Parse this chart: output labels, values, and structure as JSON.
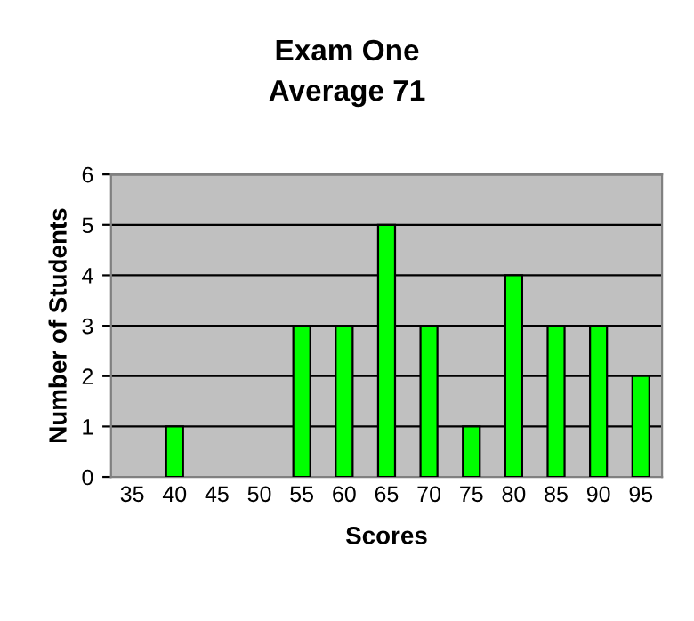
{
  "chart_data": {
    "type": "bar",
    "title": "Exam One",
    "subtitle": "Average 71",
    "xlabel": "Scores",
    "ylabel": "Number of Students",
    "categories": [
      "35",
      "40",
      "45",
      "50",
      "55",
      "60",
      "65",
      "70",
      "75",
      "80",
      "85",
      "90",
      "95"
    ],
    "values": [
      0,
      1,
      0,
      0,
      3,
      3,
      5,
      3,
      1,
      4,
      3,
      3,
      2
    ],
    "color": "#00ff00",
    "ylim": [
      0,
      6
    ],
    "yticks": [
      0,
      1,
      2,
      3,
      4,
      5,
      6
    ],
    "grid": "y"
  }
}
